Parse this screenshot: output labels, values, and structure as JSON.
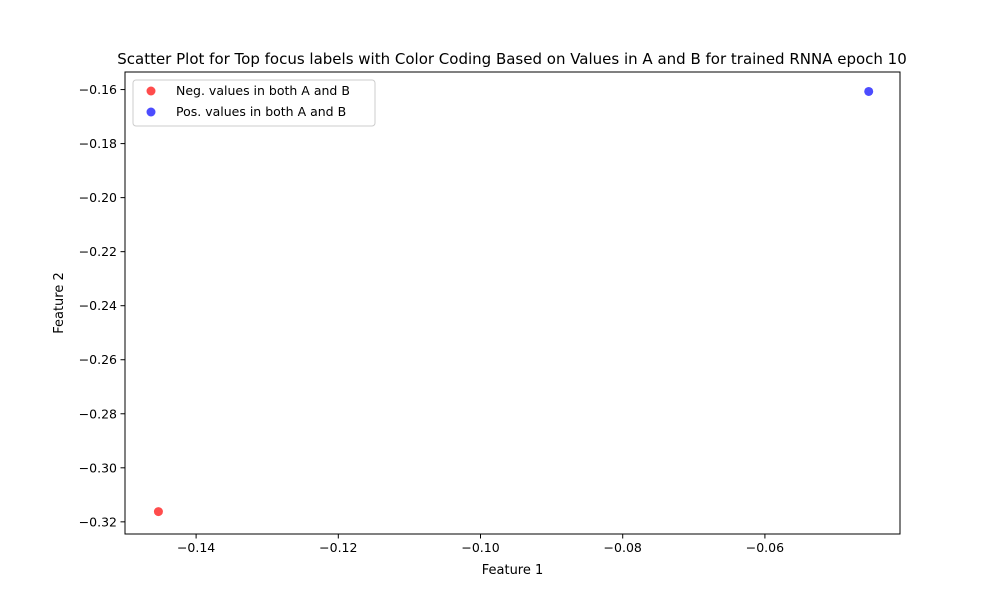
{
  "chart_data": {
    "type": "scatter",
    "title": "Scatter Plot for Top focus labels with Color Coding Based on Values in A and B for trained RNNA epoch 10",
    "xlabel": "Feature 1",
    "ylabel": "Feature 2",
    "xlim": [
      -0.15,
      -0.041
    ],
    "ylim": [
      -0.3245,
      -0.1535
    ],
    "x_ticks": [
      -0.14,
      -0.12,
      -0.1,
      -0.08,
      -0.06
    ],
    "x_tick_labels": [
      "−0.14",
      "−0.12",
      "−0.10",
      "−0.08",
      "−0.06"
    ],
    "y_ticks": [
      -0.16,
      -0.18,
      -0.2,
      -0.22,
      -0.24,
      -0.26,
      -0.28,
      -0.3,
      -0.32
    ],
    "y_tick_labels": [
      "−0.16",
      "−0.18",
      "−0.20",
      "−0.22",
      "−0.24",
      "−0.26",
      "−0.28",
      "−0.30",
      "−0.32"
    ],
    "grid": false,
    "legend_position": "top-left",
    "series": [
      {
        "name": "Neg. values in both A and B",
        "color": "#ff0000",
        "points": [
          {
            "x": -0.1453,
            "y": -0.3162
          }
        ]
      },
      {
        "name": "Pos. values in both A and B",
        "color": "#0000ff",
        "points": [
          {
            "x": -0.0454,
            "y": -0.1607
          }
        ]
      }
    ]
  }
}
